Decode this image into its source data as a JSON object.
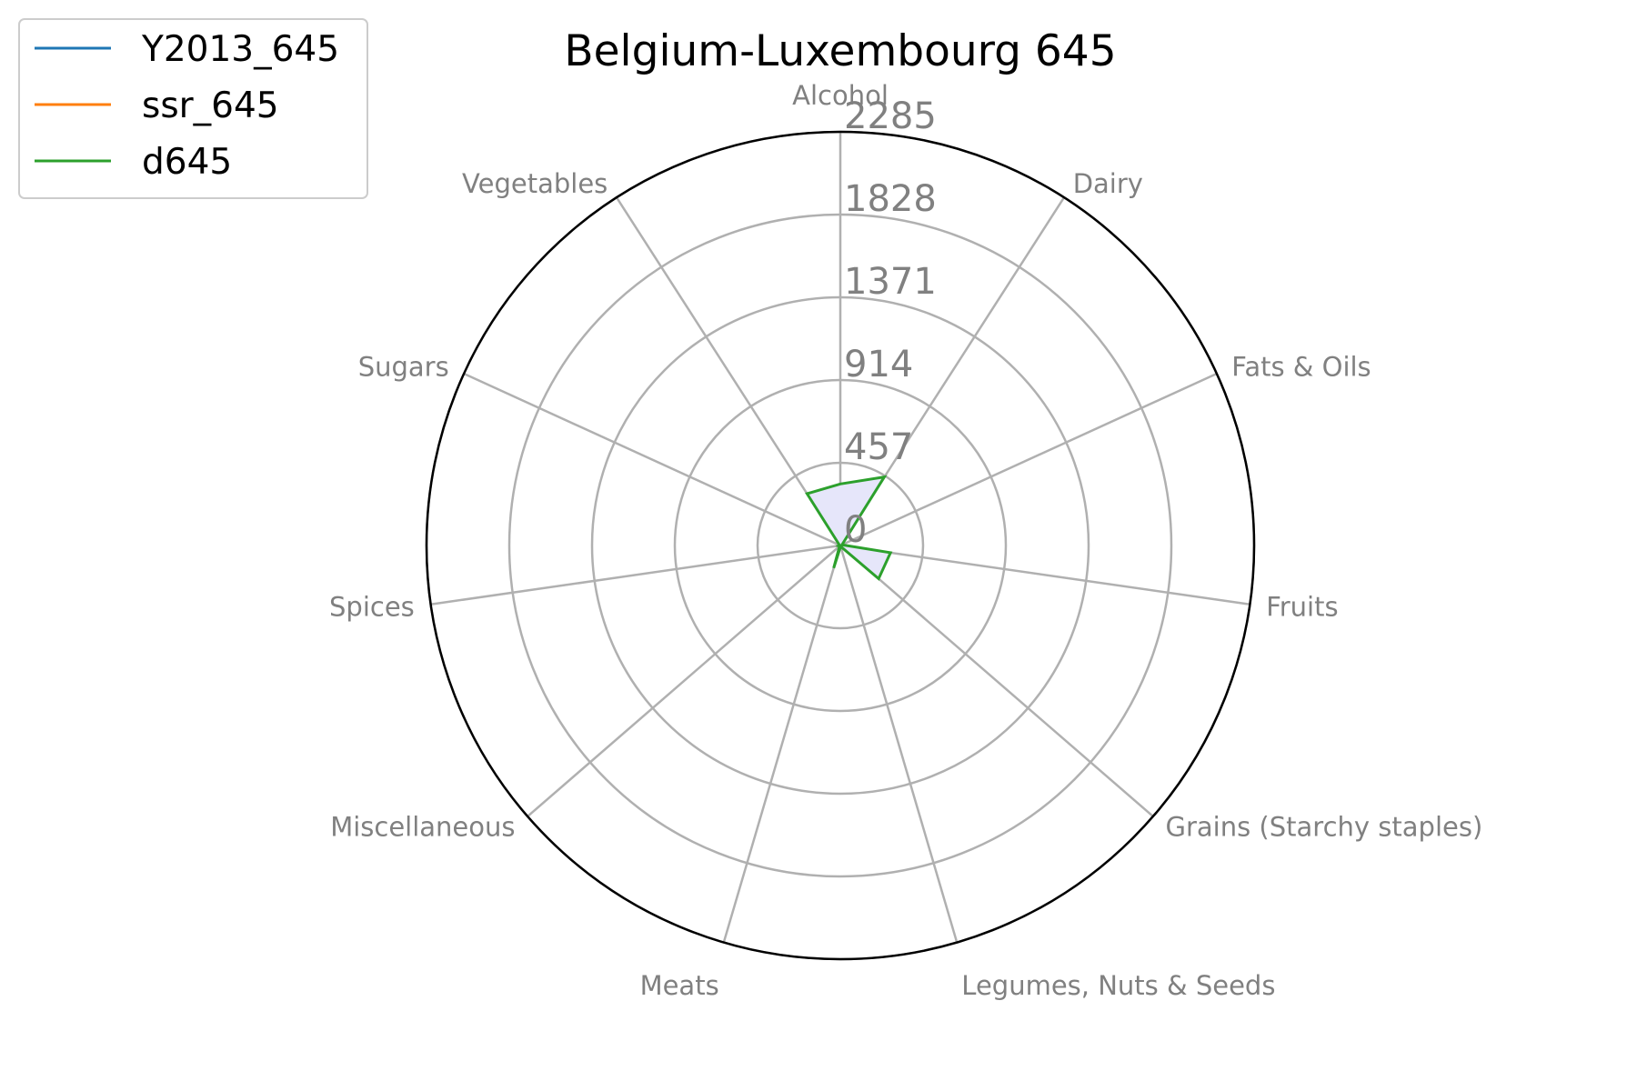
{
  "chart_data": {
    "type": "radar",
    "title": "Belgium-Luxembourg 645",
    "categories": [
      "Alcohol",
      "Dairy",
      "Fats & Oils",
      "Fruits",
      "Grains (Starchy staples)",
      "Legumes, Nuts & Seeds",
      "Meats",
      "Miscellaneous",
      "Spices",
      "Sugars",
      "Vegetables"
    ],
    "rticks": [
      "0",
      "457",
      "914",
      "1371",
      "1828",
      "2285"
    ],
    "rlim": [
      0,
      2285
    ],
    "grid": true,
    "legend_position": "top-left",
    "series": [
      {
        "name": "Y2013_645",
        "color": "#1f77b4",
        "values": [
          0,
          0,
          0,
          0,
          0,
          0,
          0,
          0,
          0,
          0,
          0
        ]
      },
      {
        "name": "ssr_645",
        "color": "#ff7f0e",
        "values": [
          0,
          0,
          0,
          0,
          0,
          0,
          0,
          0,
          0,
          0,
          0
        ]
      },
      {
        "name": "d645",
        "color": "#2ca02c",
        "values": [
          340,
          450,
          10,
          280,
          280,
          5,
          130,
          5,
          10,
          5,
          340
        ]
      }
    ],
    "fill_color": "#e6e6fa"
  }
}
